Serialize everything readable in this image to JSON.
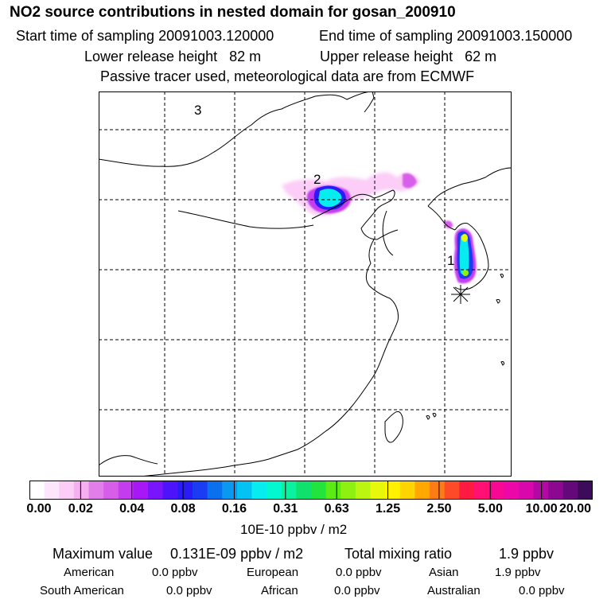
{
  "header": {
    "title": "NO2 source contributions in nested domain for gosan_200910",
    "start_label": "Start time of sampling",
    "start_value": "20091003.120000",
    "end_label": "End time of sampling",
    "end_value": "20091003.150000",
    "lower_label": "Lower release height",
    "lower_value": "82 m",
    "upper_label": "Upper release height",
    "upper_value": "62 m",
    "note": "Passive tracer used, meteorological data are from ECMWF"
  },
  "map": {
    "source_labels": [
      "1",
      "2",
      "3"
    ]
  },
  "colorbar": {
    "ticks": [
      "0.00",
      "0.02",
      "0.04",
      "0.08",
      "0.16",
      "0.31",
      "0.63",
      "1.25",
      "2.50",
      "5.00",
      "10.00",
      "20.00"
    ],
    "units": "10E-10 ppbv / m2",
    "colors": [
      "#ffffff",
      "#fde6fb",
      "#fbcdf7",
      "#f6b0f2",
      "#e27ee9",
      "#d75ee9",
      "#c43cf0",
      "#a818f6",
      "#7a14fb",
      "#4d14fb",
      "#2a1cf6",
      "#1a3cf2",
      "#0a70ee",
      "#0a98f0",
      "#05c2f4",
      "#06ecef",
      "#04f8d0",
      "#0af2a0",
      "#10e06c",
      "#22e43c",
      "#5aec14",
      "#8ef010",
      "#bcf610",
      "#e8f80a",
      "#fff200",
      "#ffd400",
      "#ffa800",
      "#ff7c14",
      "#ff4a2a",
      "#ff1a42",
      "#ff1072",
      "#f80894",
      "#ec08a8",
      "#d808ac",
      "#b408a4",
      "#8c0890",
      "#64087a",
      "#3c0c5a"
    ]
  },
  "summary": {
    "max_label": "Maximum value",
    "max_value": "0.131E-09 ppbv / m2",
    "total_label": "Total mixing ratio",
    "total_value": "1.9 ppbv",
    "regions": [
      {
        "name": "American",
        "value": "0.0 ppbv"
      },
      {
        "name": "European",
        "value": "0.0 ppbv"
      },
      {
        "name": "Asian",
        "value": "1.9 ppbv"
      },
      {
        "name": "South American",
        "value": "0.0 ppbv"
      },
      {
        "name": "African",
        "value": "0.0 ppbv"
      },
      {
        "name": "Australian",
        "value": "0.0 ppbv"
      }
    ]
  }
}
